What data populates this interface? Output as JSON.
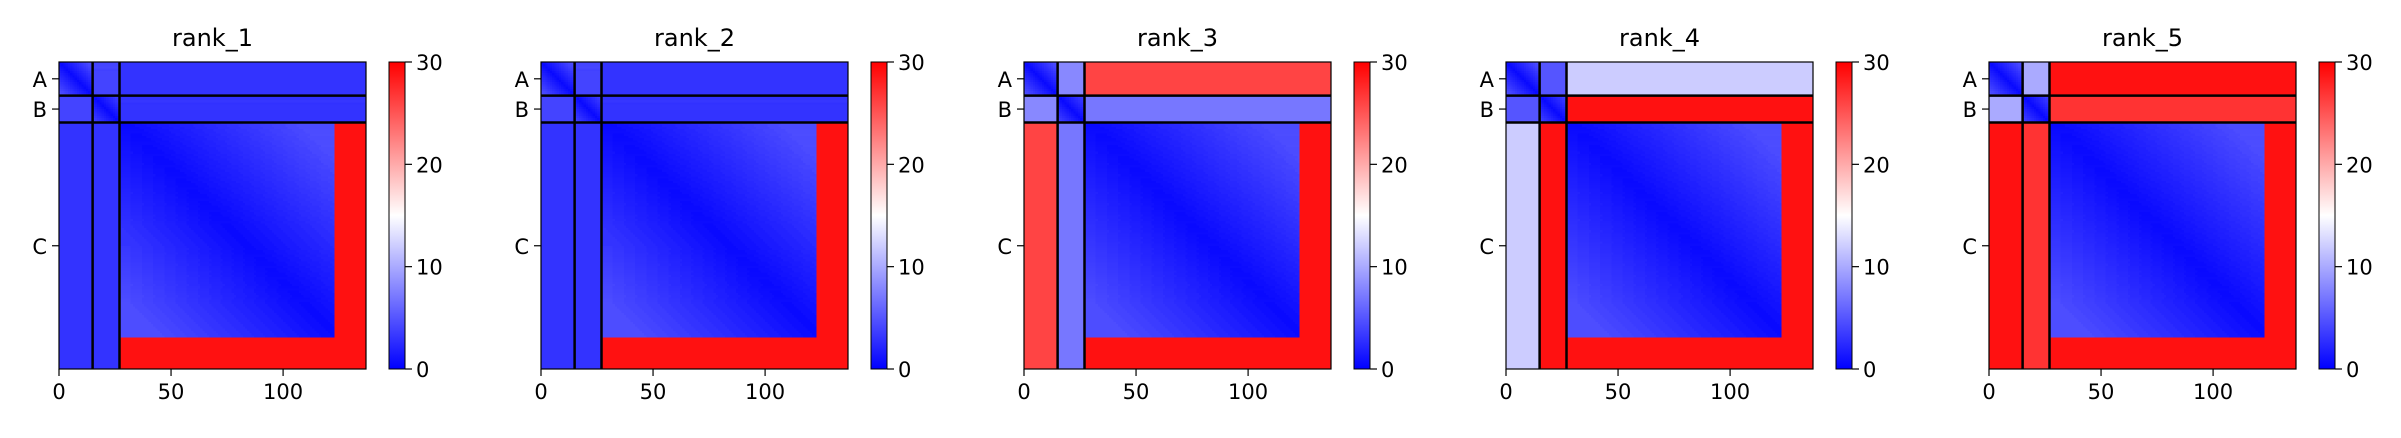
{
  "chart_data": {
    "type": "heatmap",
    "colormap": {
      "name": "bwr",
      "low_color": "#0000ff",
      "mid_color": "#ffffff",
      "high_color": "#ff0000",
      "vmin": 0,
      "vmax": 30,
      "ticks": [
        "0",
        "10",
        "20",
        "30"
      ]
    },
    "x_ticks": [
      "0",
      "50",
      "100"
    ],
    "x_tick_values": [
      0,
      50,
      100
    ],
    "xlim": [
      0,
      137
    ],
    "chains": [
      {
        "label": "A",
        "start": 0,
        "end": 15
      },
      {
        "label": "B",
        "start": 15,
        "end": 27
      },
      {
        "label": "C",
        "start": 27,
        "end": 137
      }
    ],
    "chain_boundaries": [
      15,
      27
    ],
    "grid": false,
    "panels": [
      {
        "title": "rank_1",
        "interchain_pae": {
          "AB": 4,
          "AC": 3,
          "BC": 3
        },
        "core": [
          27,
          123
        ],
        "flank_pae": 29
      },
      {
        "title": "rank_2",
        "interchain_pae": {
          "AB": 4,
          "AC": 3,
          "BC": 3
        },
        "core": [
          27,
          123
        ],
        "flank_pae": 29
      },
      {
        "title": "rank_3",
        "interchain_pae": {
          "AB": 8,
          "AC": 26,
          "BC": 7
        },
        "core": [
          27,
          123
        ],
        "flank_pae": 29
      },
      {
        "title": "rank_4",
        "interchain_pae": {
          "AB": 5,
          "AC": 12,
          "BC": 29
        },
        "core": [
          27,
          123
        ],
        "flank_pae": 29
      },
      {
        "title": "rank_5",
        "interchain_pae": {
          "AB": 10,
          "AC": 29,
          "BC": 27
        },
        "core": [
          27,
          123
        ],
        "flank_pae": 29
      }
    ]
  }
}
